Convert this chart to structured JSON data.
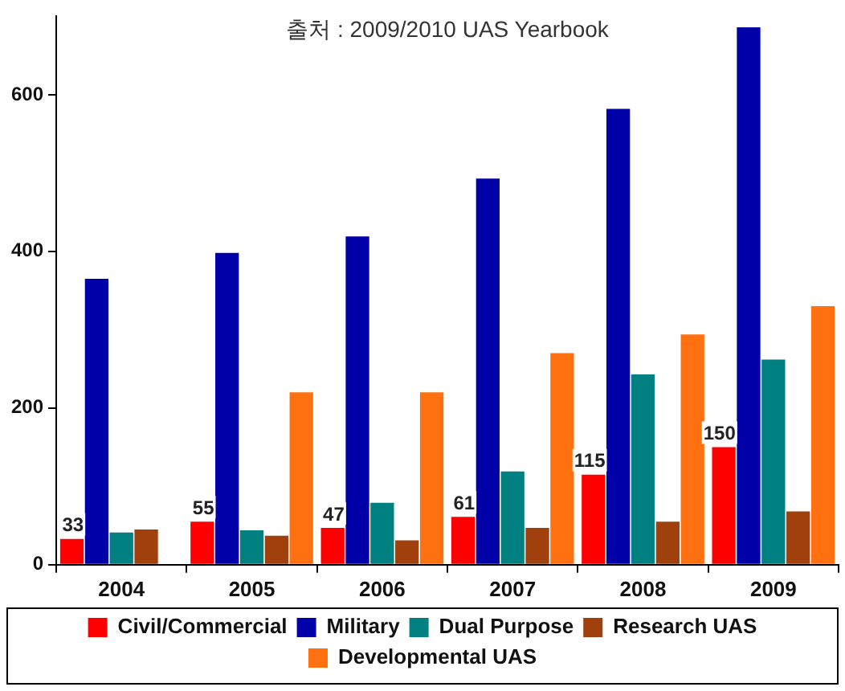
{
  "chart_data": {
    "type": "bar",
    "annotations": [
      "출처 : 2009/2010 UAS Yearbook"
    ],
    "categories": [
      "2004",
      "2005",
      "2006",
      "2007",
      "2008",
      "2009"
    ],
    "series": [
      {
        "name": "Civil/Commercial",
        "color": "#ff0000",
        "values": [
          33,
          55,
          47,
          61,
          115,
          150
        ],
        "value_labels": [
          "33",
          "55",
          "47",
          "61",
          "115",
          "150"
        ]
      },
      {
        "name": "Military",
        "color": "#0000a8",
        "values": [
          365,
          398,
          419,
          493,
          582,
          686
        ]
      },
      {
        "name": "Dual Purpose",
        "color": "#008080",
        "values": [
          41,
          44,
          79,
          119,
          243,
          262
        ]
      },
      {
        "name": "Research UAS",
        "color": "#a0400c",
        "values": [
          45,
          37,
          31,
          47,
          55,
          68
        ]
      },
      {
        "name": "Developmental UAS",
        "color": "#ff7010",
        "values": [
          null,
          220,
          220,
          270,
          294,
          330
        ]
      }
    ],
    "ylim": [
      0,
      700
    ],
    "yticks": [
      0,
      200,
      400,
      600
    ],
    "grid": false,
    "legend": "bottom"
  }
}
